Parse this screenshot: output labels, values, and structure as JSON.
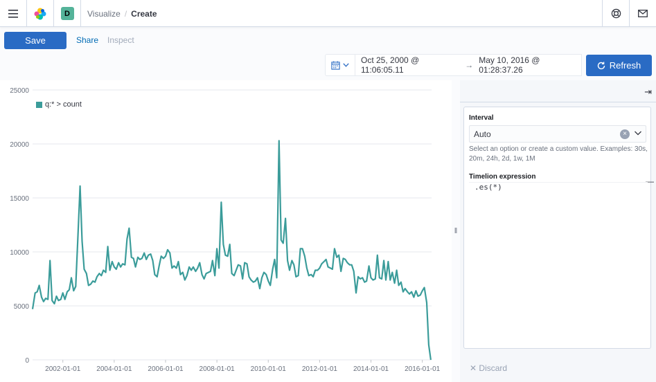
{
  "header": {
    "space_initial": "D",
    "breadcrumbs": [
      "Visualize",
      "Create"
    ],
    "breadcrumb_sep": "/"
  },
  "actions": {
    "save_label": "Save",
    "share_label": "Share",
    "inspect_label": "Inspect"
  },
  "timepicker": {
    "start": "Oct 25, 2000 @ 11:06:05.11",
    "arrow": "→",
    "end": "May 10, 2016 @ 01:28:37.26",
    "refresh_label": "Refresh"
  },
  "sidebar": {
    "interval_label": "Interval",
    "interval_value": "Auto",
    "interval_help": "Select an option or create a custom value. Examples: 30s, 20m, 24h, 2d, 1w, 1M",
    "expression_label": "Timelion expression",
    "expression": ".es(*)",
    "discard_label": "Discard"
  },
  "colors": {
    "primary": "#2a6bc4",
    "series": "#3b9c9a",
    "space_badge": "#54b399"
  },
  "chart_data": {
    "type": "line",
    "legend": [
      "q:* > count"
    ],
    "x_tick_labels": [
      "2002-01-01",
      "2004-01-01",
      "2006-01-01",
      "2008-01-01",
      "2010-01-01",
      "2012-01-01",
      "2014-01-01",
      "2016-01-01"
    ],
    "y_tick_labels": [
      "0",
      "5000",
      "10000",
      "15000",
      "20000",
      "25000"
    ],
    "ylim": [
      0,
      25000
    ],
    "xlim": [
      2000.82,
      2016.36
    ],
    "grid": true,
    "series": [
      {
        "name": "q:* > count",
        "x": [
          2000.82,
          2000.92,
          2001.0,
          2001.08,
          2001.17,
          2001.25,
          2001.33,
          2001.42,
          2001.5,
          2001.58,
          2001.67,
          2001.75,
          2001.83,
          2001.92,
          2002.0,
          2002.08,
          2002.17,
          2002.25,
          2002.33,
          2002.42,
          2002.5,
          2002.58,
          2002.67,
          2002.75,
          2002.83,
          2002.92,
          2003.0,
          2003.08,
          2003.17,
          2003.25,
          2003.33,
          2003.42,
          2003.5,
          2003.58,
          2003.67,
          2003.75,
          2003.83,
          2003.92,
          2004.0,
          2004.08,
          2004.17,
          2004.25,
          2004.33,
          2004.42,
          2004.5,
          2004.58,
          2004.67,
          2004.75,
          2004.83,
          2004.92,
          2005.0,
          2005.08,
          2005.17,
          2005.25,
          2005.33,
          2005.42,
          2005.5,
          2005.58,
          2005.67,
          2005.75,
          2005.83,
          2005.92,
          2006.0,
          2006.08,
          2006.17,
          2006.25,
          2006.33,
          2006.42,
          2006.5,
          2006.58,
          2006.67,
          2006.75,
          2006.83,
          2006.92,
          2007.0,
          2007.08,
          2007.17,
          2007.25,
          2007.33,
          2007.42,
          2007.5,
          2007.58,
          2007.67,
          2007.75,
          2007.83,
          2007.92,
          2008.0,
          2008.08,
          2008.17,
          2008.25,
          2008.33,
          2008.42,
          2008.5,
          2008.58,
          2008.67,
          2008.75,
          2008.83,
          2008.92,
          2009.0,
          2009.08,
          2009.17,
          2009.25,
          2009.33,
          2009.42,
          2009.5,
          2009.58,
          2009.67,
          2009.75,
          2009.83,
          2009.92,
          2010.0,
          2010.08,
          2010.17,
          2010.25,
          2010.33,
          2010.42,
          2010.5,
          2010.58,
          2010.67,
          2010.75,
          2010.83,
          2010.92,
          2011.0,
          2011.08,
          2011.17,
          2011.25,
          2011.33,
          2011.42,
          2011.5,
          2011.58,
          2011.67,
          2011.75,
          2011.83,
          2011.92,
          2012.0,
          2012.08,
          2012.17,
          2012.25,
          2012.33,
          2012.42,
          2012.5,
          2012.58,
          2012.67,
          2012.75,
          2012.83,
          2012.92,
          2013.0,
          2013.08,
          2013.17,
          2013.25,
          2013.33,
          2013.42,
          2013.5,
          2013.58,
          2013.67,
          2013.75,
          2013.83,
          2013.92,
          2014.0,
          2014.08,
          2014.17,
          2014.25,
          2014.33,
          2014.42,
          2014.5,
          2014.58,
          2014.67,
          2014.75,
          2014.83,
          2014.92,
          2015.0,
          2015.08,
          2015.17,
          2015.25,
          2015.33,
          2015.42,
          2015.5,
          2015.58,
          2015.67,
          2015.75,
          2015.83,
          2015.92,
          2016.0,
          2016.08,
          2016.17,
          2016.25,
          2016.33
        ],
        "y": [
          4700,
          6200,
          6300,
          6900,
          5800,
          5400,
          5700,
          5600,
          9200,
          5500,
          5200,
          5900,
          5500,
          5600,
          6200,
          5600,
          6300,
          6500,
          7600,
          6400,
          6800,
          11000,
          16100,
          11000,
          8400,
          8000,
          6900,
          7000,
          7300,
          7200,
          7700,
          8000,
          7800,
          8300,
          8100,
          10500,
          8300,
          9100,
          8600,
          8400,
          9000,
          8600,
          8900,
          8800,
          11200,
          12200,
          9500,
          9400,
          8600,
          9500,
          9300,
          9400,
          9900,
          9300,
          9700,
          9800,
          9200,
          7900,
          7700,
          8700,
          9600,
          9400,
          9600,
          10200,
          9900,
          8500,
          8700,
          8500,
          9100,
          7900,
          8100,
          7400,
          7800,
          8600,
          8300,
          8600,
          8200,
          8500,
          9000,
          7900,
          7500,
          8000,
          8100,
          8200,
          9200,
          7800,
          10300,
          8500,
          14600,
          10700,
          9700,
          9600,
          10700,
          8000,
          7800,
          8300,
          8800,
          8700,
          7500,
          9000,
          8900,
          7700,
          7400,
          7200,
          7300,
          7600,
          6600,
          7600,
          8100,
          7900,
          7300,
          6900,
          8400,
          9300,
          7600,
          20300,
          11100,
          10800,
          13100,
          9200,
          8300,
          9200,
          8800,
          7700,
          7800,
          10300,
          10300,
          9600,
          8500,
          7800,
          7900,
          7700,
          8300,
          8300,
          8500,
          8900,
          9100,
          9300,
          8600,
          8500,
          8400,
          10300,
          9500,
          9700,
          8200,
          9400,
          9300,
          9000,
          8800,
          8800,
          8200,
          6200,
          7700,
          7500,
          7600,
          7200,
          7300,
          8700,
          7600,
          7400,
          7500,
          9700,
          7600,
          7500,
          9200,
          7400,
          9100,
          7400,
          8100,
          7100,
          8300,
          6900,
          7200,
          6300,
          6600,
          6300,
          6100,
          6300,
          5800,
          6400,
          5900,
          6000,
          6400,
          6700,
          5300,
          1400,
          0
        ]
      }
    ]
  }
}
